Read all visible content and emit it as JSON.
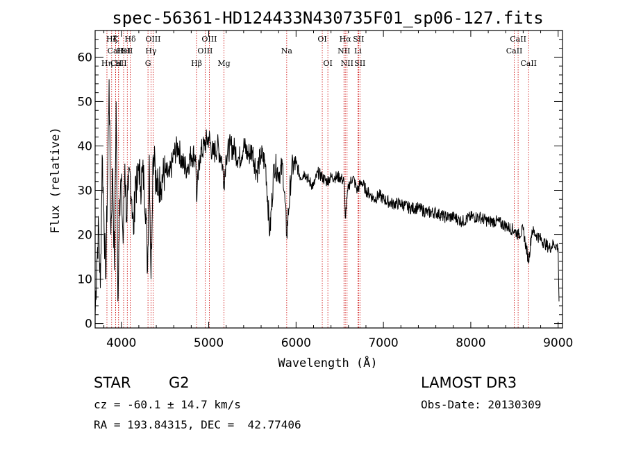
{
  "chart_data": {
    "type": "line",
    "title": "spec-56361-HD124433N430735F01_sp06-127.fits",
    "xlabel": "Wavelength (Å)",
    "ylabel": "Flux (relative)",
    "xlim": [
      3700,
      9050
    ],
    "ylim": [
      -1,
      66
    ],
    "x_ticks": [
      4000,
      5000,
      6000,
      7000,
      8000,
      9000
    ],
    "x_tick_labels": [
      "4000",
      "5000",
      "6000",
      "7000",
      "8000",
      "9000"
    ],
    "y_ticks": [
      0,
      10,
      20,
      30,
      40,
      50,
      60
    ],
    "y_tick_labels": [
      "0",
      "10",
      "20",
      "30",
      "40",
      "50",
      "60"
    ],
    "series": [
      {
        "name": "spectrum",
        "color": "#000000",
        "x": [
          3700,
          3720,
          3740,
          3760,
          3780,
          3800,
          3820,
          3840,
          3860,
          3880,
          3900,
          3920,
          3940,
          3960,
          3980,
          4000,
          4020,
          4040,
          4060,
          4080,
          4100,
          4120,
          4140,
          4160,
          4180,
          4200,
          4220,
          4240,
          4260,
          4280,
          4300,
          4320,
          4340,
          4360,
          4380,
          4400,
          4450,
          4500,
          4550,
          4600,
          4650,
          4700,
          4750,
          4800,
          4850,
          4861,
          4900,
          4950,
          5000,
          5050,
          5100,
          5150,
          5175,
          5200,
          5250,
          5300,
          5350,
          5400,
          5450,
          5500,
          5550,
          5600,
          5650,
          5700,
          5750,
          5800,
          5850,
          5893,
          5950,
          6000,
          6050,
          6100,
          6150,
          6200,
          6250,
          6300,
          6350,
          6400,
          6450,
          6500,
          6550,
          6563,
          6600,
          6650,
          6700,
          6750,
          6800,
          6850,
          6900,
          6950,
          7000,
          7100,
          7200,
          7300,
          7400,
          7500,
          7600,
          7700,
          7800,
          7900,
          8000,
          8100,
          8200,
          8300,
          8400,
          8498,
          8542,
          8600,
          8662,
          8700,
          8750,
          8800,
          8850,
          8900,
          8950,
          9000,
          9010
        ],
        "y": [
          2,
          14,
          22,
          8,
          38,
          25,
          10,
          30,
          55,
          20,
          35,
          12,
          50,
          5,
          28,
          32,
          18,
          36,
          24,
          30,
          34,
          28,
          20,
          33,
          30,
          36,
          31,
          34,
          32,
          26,
          12,
          38,
          10,
          36,
          40,
          30,
          32,
          34,
          33,
          38,
          40,
          36,
          35,
          38,
          38,
          28,
          38,
          40,
          42,
          38,
          40,
          37,
          32,
          38,
          40,
          39,
          37,
          40,
          38,
          39,
          34,
          38,
          36,
          20,
          36,
          34,
          35,
          20,
          35,
          36,
          33,
          34,
          32,
          31,
          34,
          33,
          32,
          33,
          33,
          33,
          32,
          24,
          31,
          33,
          30,
          32,
          30,
          29,
          28,
          29,
          28,
          27,
          27,
          26,
          26,
          25,
          25,
          24,
          24,
          23,
          24,
          24,
          23,
          23,
          22,
          21,
          20,
          21,
          14,
          21,
          20,
          19,
          18,
          17,
          18,
          17,
          5
        ]
      }
    ],
    "spectral_lines": [
      {
        "label": "Hζ",
        "wavelength": 3889,
        "row": 1
      },
      {
        "label": "CaII",
        "wavelength": 3934,
        "row": 2
      },
      {
        "label": "CaII",
        "wavelength": 3968,
        "row": 3
      },
      {
        "label": "K",
        "wavelength": 3934,
        "row": 1
      },
      {
        "label": "HeI",
        "wavelength": 4026,
        "row": 2
      },
      {
        "label": "Hη",
        "wavelength": 3835,
        "row": 3
      },
      {
        "label": "H",
        "wavelength": 3968,
        "row": 3
      },
      {
        "label": "Hδ",
        "wavelength": 4102,
        "row": 1
      },
      {
        "label": "SII",
        "wavelength": 4068,
        "row": 2
      },
      {
        "label": "OIII",
        "wavelength": 4363,
        "row": 1
      },
      {
        "label": "Hγ",
        "wavelength": 4340,
        "row": 2
      },
      {
        "label": "G",
        "wavelength": 4305,
        "row": 3
      },
      {
        "label": "Hβ",
        "wavelength": 4861,
        "row": 3
      },
      {
        "label": "OIII",
        "wavelength": 5007,
        "row": 1
      },
      {
        "label": "OIII",
        "wavelength": 4959,
        "row": 2
      },
      {
        "label": "Mg",
        "wavelength": 5175,
        "row": 3
      },
      {
        "label": "Na",
        "wavelength": 5893,
        "row": 2
      },
      {
        "label": "OI",
        "wavelength": 6300,
        "row": 1
      },
      {
        "label": "OI",
        "wavelength": 6364,
        "row": 3
      },
      {
        "label": "Hα",
        "wavelength": 6563,
        "row": 1
      },
      {
        "label": "SII",
        "wavelength": 6716,
        "row": 1
      },
      {
        "label": "NII",
        "wavelength": 6548,
        "row": 2
      },
      {
        "label": "Li",
        "wavelength": 6708,
        "row": 2
      },
      {
        "label": "NII",
        "wavelength": 6584,
        "row": 3
      },
      {
        "label": "SII",
        "wavelength": 6731,
        "row": 3
      },
      {
        "label": "CaII",
        "wavelength": 8542,
        "row": 1
      },
      {
        "label": "CaII",
        "wavelength": 8498,
        "row": 2
      },
      {
        "label": "CaII",
        "wavelength": 8662,
        "row": 3
      }
    ]
  },
  "info": {
    "object_class": "STAR",
    "subclass": "G2",
    "survey": "LAMOST DR3",
    "redshift": "cz = -60.1 ± 14.7 km/s",
    "obs_date": "Obs-Date: 20130309",
    "coordinates": "RA = 193.84315, DEC =  42.77406"
  },
  "colors": {
    "spectrum": "#000000",
    "line_markers": "#cc0000",
    "axes": "#000000"
  }
}
